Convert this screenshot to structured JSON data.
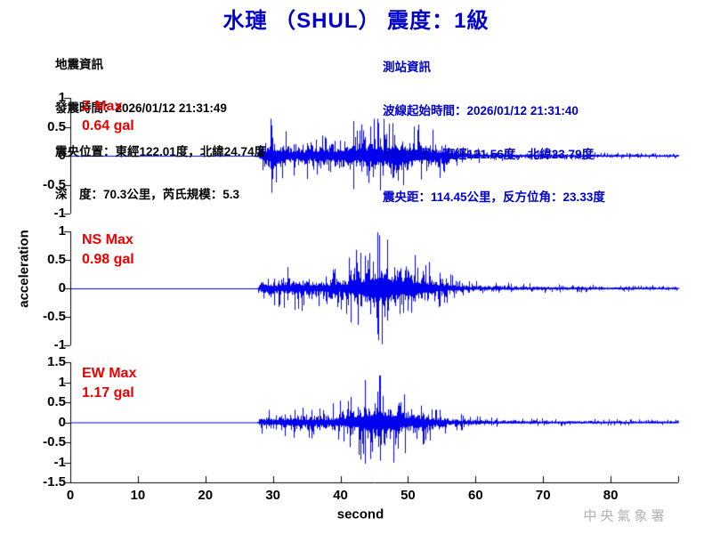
{
  "header": {
    "title": "水璉 （SHUL） 震度：1級"
  },
  "quake_info": {
    "heading": "地震資訊",
    "lines": [
      "發震時間：2026/01/12 21:31:49",
      "震央位置：東經122.01度，北緯24.74度",
      "深　度：70.3公里，芮氏規模：5.3"
    ]
  },
  "station_info": {
    "heading": "測站資訊",
    "lines": [
      "波線起始時間：2026/01/12 21:31:40",
      "測站位置：東經121.56度，北緯23.79度",
      "震央距：114.45公里，反方位角：23.33度"
    ]
  },
  "watermark": "中央氣象署",
  "chart_data": {
    "type": "line",
    "kind": "seismogram-3-component",
    "xlabel": "second",
    "ylabel": "acceleration",
    "x_range": [
      0,
      90
    ],
    "x_ticks": [
      0,
      10,
      20,
      30,
      40,
      50,
      60,
      70,
      80
    ],
    "grid": false,
    "line_color": "#0000ee",
    "signal_onset_s": 27.8,
    "series": [
      {
        "name": "Z",
        "label": "Z Max",
        "value_label": "0.64 gal",
        "max_gal": 0.64,
        "ylim": [
          -1,
          1
        ],
        "yticks": [
          1,
          0.5,
          0,
          -0.5,
          -1
        ],
        "peak_time_s": 29.8,
        "peak_dir": "down",
        "envelope": [
          [
            0,
            0
          ],
          [
            27.6,
            0
          ],
          [
            28.2,
            0.32
          ],
          [
            29,
            0.42
          ],
          [
            29.8,
            0.62
          ],
          [
            30.6,
            0.4
          ],
          [
            33,
            0.32
          ],
          [
            36,
            0.34
          ],
          [
            39,
            0.38
          ],
          [
            41,
            0.5
          ],
          [
            43,
            0.45
          ],
          [
            45,
            0.6
          ],
          [
            47,
            0.5
          ],
          [
            48.5,
            0.55
          ],
          [
            50,
            0.45
          ],
          [
            52,
            0.42
          ],
          [
            54,
            0.35
          ],
          [
            56,
            0.22
          ],
          [
            58,
            0.14
          ],
          [
            60,
            0.1
          ],
          [
            64,
            0.07
          ],
          [
            70,
            0.055
          ],
          [
            80,
            0.045
          ],
          [
            90,
            0.035
          ]
        ]
      },
      {
        "name": "NS",
        "label": "NS Max",
        "value_label": "0.98 gal",
        "max_gal": 0.98,
        "ylim": [
          -1,
          1
        ],
        "yticks": [
          1,
          0.5,
          0,
          -0.5,
          -1
        ],
        "peak_time_s": 45.4,
        "peak_dir": "up",
        "envelope": [
          [
            0,
            0
          ],
          [
            27.6,
            0
          ],
          [
            28.2,
            0.18
          ],
          [
            30,
            0.24
          ],
          [
            32.5,
            0.3
          ],
          [
            33.5,
            0.38
          ],
          [
            35,
            0.26
          ],
          [
            37,
            0.28
          ],
          [
            39,
            0.3
          ],
          [
            41,
            0.42
          ],
          [
            43,
            0.6
          ],
          [
            44.5,
            0.85
          ],
          [
            45.4,
            0.98
          ],
          [
            46.5,
            0.8
          ],
          [
            48,
            0.65
          ],
          [
            50,
            0.6
          ],
          [
            51.5,
            0.5
          ],
          [
            53,
            0.38
          ],
          [
            55,
            0.25
          ],
          [
            57,
            0.15
          ],
          [
            59,
            0.11
          ],
          [
            62,
            0.09
          ],
          [
            66,
            0.07
          ],
          [
            72,
            0.06
          ],
          [
            80,
            0.05
          ],
          [
            90,
            0.04
          ]
        ]
      },
      {
        "name": "EW",
        "label": "EW Max",
        "value_label": "1.17 gal",
        "max_gal": 1.17,
        "ylim": [
          -1.5,
          1.5
        ],
        "yticks": [
          1.5,
          1,
          0.5,
          0,
          -0.5,
          -1,
          -1.5
        ],
        "peak_time_s": 45.8,
        "peak_dir": "up",
        "envelope": [
          [
            0,
            0
          ],
          [
            27.6,
            0
          ],
          [
            28.2,
            0.22
          ],
          [
            30,
            0.28
          ],
          [
            32,
            0.3
          ],
          [
            34,
            0.34
          ],
          [
            36,
            0.3
          ],
          [
            38,
            0.32
          ],
          [
            40,
            0.42
          ],
          [
            42,
            0.65
          ],
          [
            43.5,
            0.85
          ],
          [
            45,
            1.0
          ],
          [
            45.8,
            1.17
          ],
          [
            47,
            0.85
          ],
          [
            48.5,
            0.75
          ],
          [
            50,
            0.6
          ],
          [
            52,
            0.45
          ],
          [
            54,
            0.32
          ],
          [
            56,
            0.22
          ],
          [
            58,
            0.16
          ],
          [
            60,
            0.12
          ],
          [
            64,
            0.09
          ],
          [
            70,
            0.075
          ],
          [
            80,
            0.06
          ],
          [
            90,
            0.05
          ]
        ]
      }
    ]
  }
}
